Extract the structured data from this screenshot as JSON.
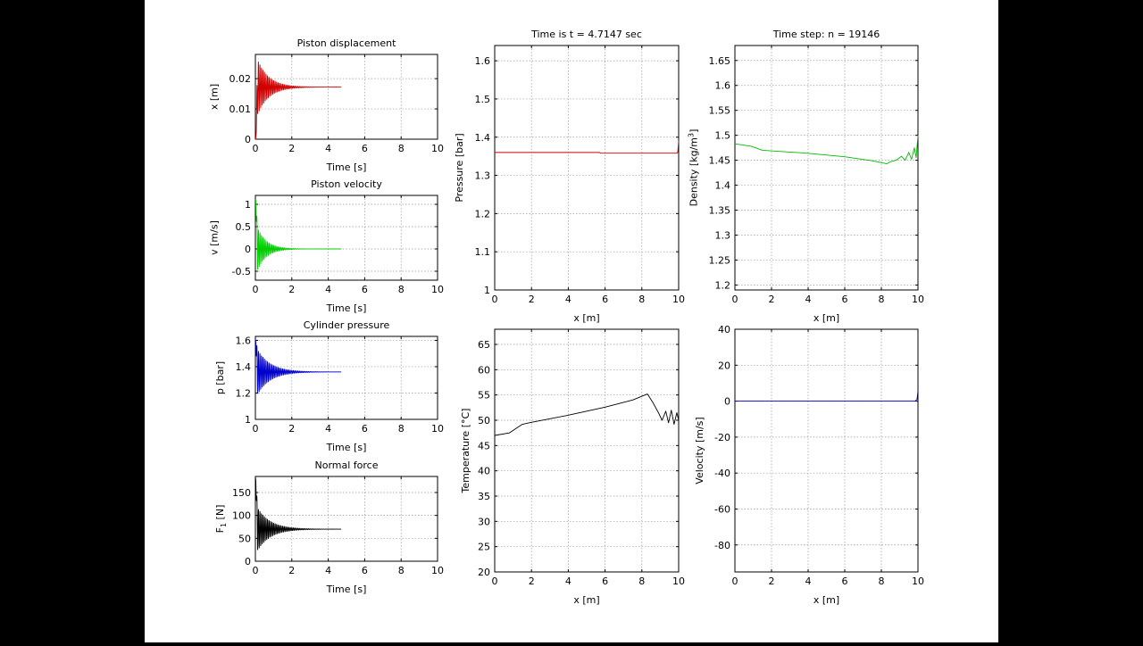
{
  "figure": {
    "background": "#ffffff",
    "letterbox": "#000000"
  },
  "chart_data": [
    {
      "id": "piston-displacement",
      "type": "line",
      "title": "Piston displacement",
      "xlabel": "Time [s]",
      "ylabel": "x [m]",
      "xlim": [
        0,
        10
      ],
      "ylim": [
        0,
        0.028
      ],
      "xticks": [
        0,
        2,
        4,
        6,
        8,
        10
      ],
      "xtick_labels": [
        "0",
        "2",
        "4",
        "6",
        "8",
        "10"
      ],
      "yticks": [
        0,
        0.01,
        0.02
      ],
      "ytick_labels": [
        "0",
        "0.01",
        "0.02"
      ],
      "grid": true,
      "color": "#d00000",
      "signal": {
        "kind": "damped",
        "x_end": 4.7147,
        "start": 0,
        "final": 0.0172,
        "amp": 0.011,
        "decay": 1.6,
        "freq": 12
      }
    },
    {
      "id": "piston-velocity",
      "type": "line",
      "title": "Piston velocity",
      "xlabel": "Time [s]",
      "ylabel": "v [m/s]",
      "xlim": [
        0,
        10
      ],
      "ylim": [
        -0.7,
        1.2
      ],
      "xticks": [
        0,
        2,
        4,
        6,
        8,
        10
      ],
      "xtick_labels": [
        "0",
        "2",
        "4",
        "6",
        "8",
        "10"
      ],
      "yticks": [
        -0.5,
        0,
        0.5,
        1
      ],
      "ytick_labels": [
        "-0.5",
        "0",
        "0.5",
        "1"
      ],
      "grid": true,
      "color": "#00cc00",
      "signal": {
        "kind": "damped",
        "x_end": 4.7147,
        "start": 1.1,
        "final": 0.0,
        "amp": 0.6,
        "decay": 2.0,
        "freq": 12
      }
    },
    {
      "id": "cylinder-pressure",
      "type": "line",
      "title": "Cylinder pressure",
      "xlabel": "Time [s]",
      "ylabel": "p [bar]",
      "xlim": [
        0,
        10
      ],
      "ylim": [
        1,
        1.63
      ],
      "xticks": [
        0,
        2,
        4,
        6,
        8,
        10
      ],
      "xtick_labels": [
        "0",
        "2",
        "4",
        "6",
        "8",
        "10"
      ],
      "yticks": [
        1,
        1.2,
        1.4,
        1.6
      ],
      "ytick_labels": [
        "1",
        "1.2",
        "1.4",
        "1.6"
      ],
      "grid": true,
      "color": "#0000cc",
      "signal": {
        "kind": "damped",
        "x_end": 4.7147,
        "start": 1.6,
        "final": 1.36,
        "amp": 0.2,
        "decay": 1.4,
        "freq": 12
      }
    },
    {
      "id": "normal-force",
      "type": "line",
      "title": "Normal force",
      "xlabel": "Time [s]",
      "ylabel": "F",
      "ylabel_sub": "1",
      "ylabel_suffix": " [N]",
      "xlim": [
        0,
        10
      ],
      "ylim": [
        0,
        185
      ],
      "xticks": [
        0,
        2,
        4,
        6,
        8,
        10
      ],
      "xtick_labels": [
        "0",
        "2",
        "4",
        "6",
        "8",
        "10"
      ],
      "yticks": [
        0,
        50,
        100,
        150
      ],
      "ytick_labels": [
        "0",
        "50",
        "100",
        "150"
      ],
      "grid": true,
      "color": "#000000",
      "signal": {
        "kind": "damped",
        "x_end": 4.7147,
        "start": 180,
        "final": 70,
        "amp": 55,
        "decay": 1.4,
        "freq": 12
      }
    },
    {
      "id": "pressure-profile",
      "type": "line",
      "title": "Time is t = 4.7147 sec",
      "xlabel": "x [m]",
      "ylabel": "Pressure [bar]",
      "xlim": [
        0,
        10
      ],
      "ylim": [
        1,
        1.64
      ],
      "xticks": [
        0,
        2,
        4,
        6,
        8,
        10
      ],
      "xtick_labels": [
        "0",
        "2",
        "4",
        "6",
        "8",
        "10"
      ],
      "yticks": [
        1,
        1.1,
        1.2,
        1.3,
        1.4,
        1.5,
        1.6
      ],
      "ytick_labels": [
        "1",
        "1.1",
        "1.2",
        "1.3",
        "1.4",
        "1.5",
        "1.6"
      ],
      "grid": true,
      "color": "#d00000",
      "series": [
        {
          "name": "pressure",
          "x": [
            0,
            5.7,
            5.75,
            9.9,
            9.95,
            10
          ],
          "y": [
            1.36,
            1.36,
            1.358,
            1.358,
            1.36,
            1.39
          ]
        }
      ]
    },
    {
      "id": "density-profile",
      "type": "line",
      "title": "Time step: n = 19146",
      "xlabel": "x [m]",
      "ylabel": "Density [kg/m",
      "ylabel_sup": "3",
      "ylabel_suffix": "]",
      "xlim": [
        0,
        10
      ],
      "ylim": [
        1.19,
        1.68
      ],
      "xticks": [
        0,
        2,
        4,
        6,
        8,
        10
      ],
      "xtick_labels": [
        "0",
        "2",
        "4",
        "6",
        "8",
        "10"
      ],
      "yticks": [
        1.2,
        1.25,
        1.3,
        1.35,
        1.4,
        1.45,
        1.5,
        1.55,
        1.6,
        1.65
      ],
      "ytick_labels": [
        "1.2",
        "1.25",
        "1.3",
        "1.35",
        "1.4",
        "1.45",
        "1.5",
        "1.55",
        "1.6",
        "1.65"
      ],
      "grid": true,
      "color": "#00bb00",
      "series": [
        {
          "name": "density",
          "x": [
            0,
            0.9,
            1.5,
            4,
            6,
            7.5,
            8.3,
            8.5,
            8.8,
            9.1,
            9.3,
            9.5,
            9.65,
            9.8,
            9.9,
            10
          ],
          "y": [
            1.483,
            1.478,
            1.47,
            1.464,
            1.457,
            1.449,
            1.443,
            1.447,
            1.45,
            1.458,
            1.45,
            1.466,
            1.452,
            1.475,
            1.455,
            1.5
          ]
        }
      ]
    },
    {
      "id": "temperature-profile",
      "type": "line",
      "title": "",
      "xlabel": "x [m]",
      "ylabel": "Temperature [°C]",
      "xlim": [
        0,
        10
      ],
      "ylim": [
        20,
        68
      ],
      "xticks": [
        0,
        2,
        4,
        6,
        8,
        10
      ],
      "xtick_labels": [
        "0",
        "2",
        "4",
        "6",
        "8",
        "10"
      ],
      "yticks": [
        20,
        25,
        30,
        35,
        40,
        45,
        50,
        55,
        60,
        65
      ],
      "ytick_labels": [
        "20",
        "25",
        "30",
        "35",
        "40",
        "45",
        "50",
        "55",
        "60",
        "65"
      ],
      "grid": true,
      "color": "#000000",
      "series": [
        {
          "name": "temperature",
          "x": [
            0,
            0.8,
            1.5,
            2,
            4,
            6,
            7.5,
            8.3,
            8.6,
            8.9,
            9.1,
            9.3,
            9.45,
            9.6,
            9.75,
            9.9,
            10
          ],
          "y": [
            47,
            47.5,
            49.2,
            49.6,
            51,
            52.6,
            54,
            55.2,
            53.5,
            51.5,
            50,
            51.8,
            49.5,
            52,
            49.2,
            51.5,
            50
          ]
        }
      ]
    },
    {
      "id": "velocity-profile",
      "type": "line",
      "title": "",
      "xlabel": "x [m]",
      "ylabel": "Velocity [m/s]",
      "xlim": [
        0,
        10
      ],
      "ylim": [
        -95,
        40
      ],
      "xticks": [
        0,
        2,
        4,
        6,
        8,
        10
      ],
      "xtick_labels": [
        "0",
        "2",
        "4",
        "6",
        "8",
        "10"
      ],
      "yticks": [
        -80,
        -60,
        -40,
        -20,
        0,
        20,
        40
      ],
      "ytick_labels": [
        "-80",
        "-60",
        "-40",
        "-20",
        "0",
        "20",
        "40"
      ],
      "grid": true,
      "color": "#0000cc",
      "series": [
        {
          "name": "velocity",
          "x": [
            0,
            9.85,
            9.95,
            10
          ],
          "y": [
            0,
            0,
            1,
            6
          ]
        }
      ]
    }
  ]
}
